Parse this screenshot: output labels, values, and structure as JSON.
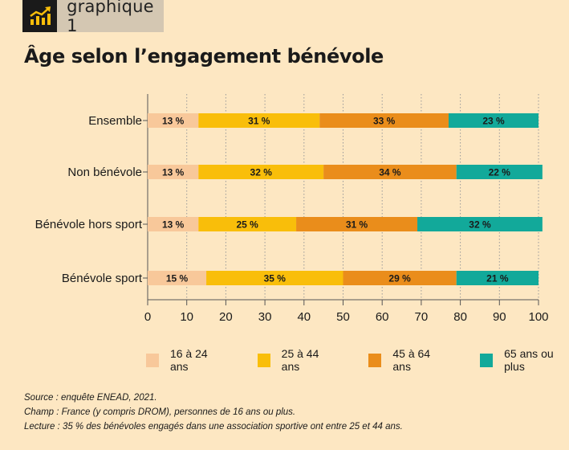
{
  "badge": {
    "label": "graphique 1",
    "icon": "chart-growth-icon"
  },
  "title": "Âge selon l’engagement bénévole",
  "colors": {
    "background": "#fde7c2",
    "s1": "#f8c89a",
    "s2": "#f9be0a",
    "s3": "#ea8d1b",
    "s4": "#12a99a",
    "grid": "#9a9a9a"
  },
  "chart_data": {
    "type": "bar",
    "orientation": "horizontal",
    "stacked": true,
    "categories": [
      "Ensemble",
      "Non bénévole",
      "Bénévole hors sport",
      "Bénévole sport"
    ],
    "series": [
      {
        "name": "16 à 24 ans",
        "values": [
          13,
          13,
          13,
          15
        ],
        "labels": [
          "13 %",
          "13 %",
          "13 %",
          "15 %"
        ]
      },
      {
        "name": "25 à 44 ans",
        "values": [
          31,
          32,
          25,
          35
        ],
        "labels": [
          "31 %",
          "32 %",
          "25 %",
          "35 %"
        ]
      },
      {
        "name": "45 à 64 ans",
        "values": [
          33,
          34,
          31,
          29
        ],
        "labels": [
          "33 %",
          "34 %",
          "31 %",
          "29 %"
        ]
      },
      {
        "name": "65 ans ou plus",
        "values": [
          23,
          22,
          32,
          21
        ],
        "labels": [
          "23 %",
          "22 %",
          "32 %",
          "21 %"
        ]
      }
    ],
    "xlim": [
      0,
      100
    ],
    "xticks": [
      0,
      10,
      20,
      30,
      40,
      50,
      60,
      70,
      80,
      90,
      100
    ],
    "xtick_labels": [
      "0",
      "10",
      "20",
      "30",
      "40",
      "50",
      "60",
      "70",
      "80",
      "90",
      "100"
    ],
    "grid": true,
    "legend_position": "bottom"
  },
  "notes": {
    "source": "Source : enquête ENEAD, 2021.",
    "champ": "Champ : France (y compris DROM), personnes de 16 ans ou plus.",
    "lecture": "Lecture : 35 % des bénévoles engagés dans une association sportive ont entre 25 et 44 ans."
  }
}
